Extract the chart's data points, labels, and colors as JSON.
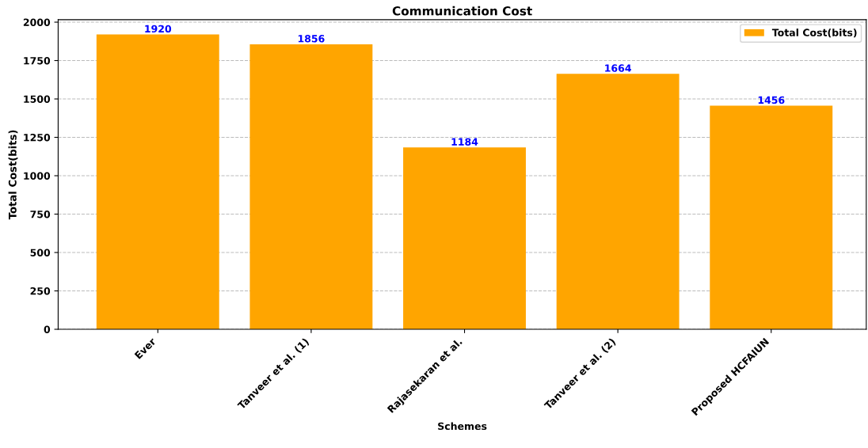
{
  "chart_data": {
    "type": "bar",
    "title": "Communication Cost",
    "xlabel": "Schemes",
    "ylabel": "Total Cost(bits)",
    "categories": [
      "Ever",
      "Tanveer et al. (1)",
      "Rajasekaran et al.",
      "Tanveer et al. (2)",
      "Proposed HCFAIUN"
    ],
    "series": [
      {
        "name": "Total Cost(bits)",
        "color": "#ffa500",
        "values": [
          1920,
          1856,
          1184,
          1664,
          1456
        ]
      }
    ],
    "ylim": [
      0,
      2016
    ],
    "yticks": [
      0,
      250,
      500,
      750,
      1000,
      1250,
      1500,
      1750,
      2000
    ],
    "grid": "y",
    "legend": "top right",
    "data_labels": true
  }
}
